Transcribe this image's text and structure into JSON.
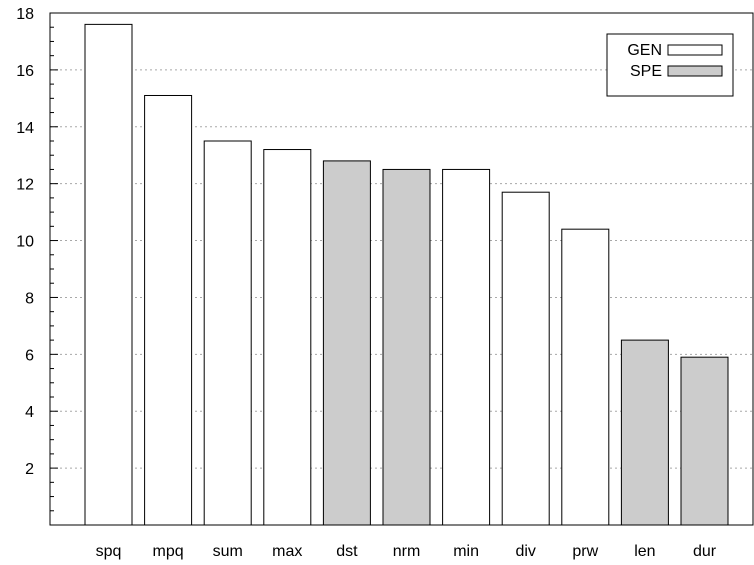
{
  "chart_data": {
    "type": "bar",
    "categories": [
      "spq",
      "mpq",
      "sum",
      "max",
      "dst",
      "nrm",
      "min",
      "div",
      "prw",
      "len",
      "dur"
    ],
    "values": [
      17.6,
      15.1,
      13.5,
      13.2,
      12.8,
      12.5,
      12.5,
      11.7,
      10.4,
      6.5,
      5.9
    ],
    "groups": [
      "GEN",
      "GEN",
      "GEN",
      "GEN",
      "SPE",
      "SPE",
      "GEN",
      "GEN",
      "GEN",
      "SPE",
      "SPE"
    ],
    "series": [
      {
        "name": "GEN",
        "color": "#ffffff"
      },
      {
        "name": "SPE",
        "color": "#cccccc"
      }
    ],
    "title": "",
    "xlabel": "",
    "ylabel": "",
    "ylim": [
      0,
      18
    ],
    "yticks": [
      2,
      4,
      6,
      8,
      10,
      12,
      14,
      16,
      18
    ],
    "grid": "horizontal dotted",
    "legend_position": "top-right"
  }
}
